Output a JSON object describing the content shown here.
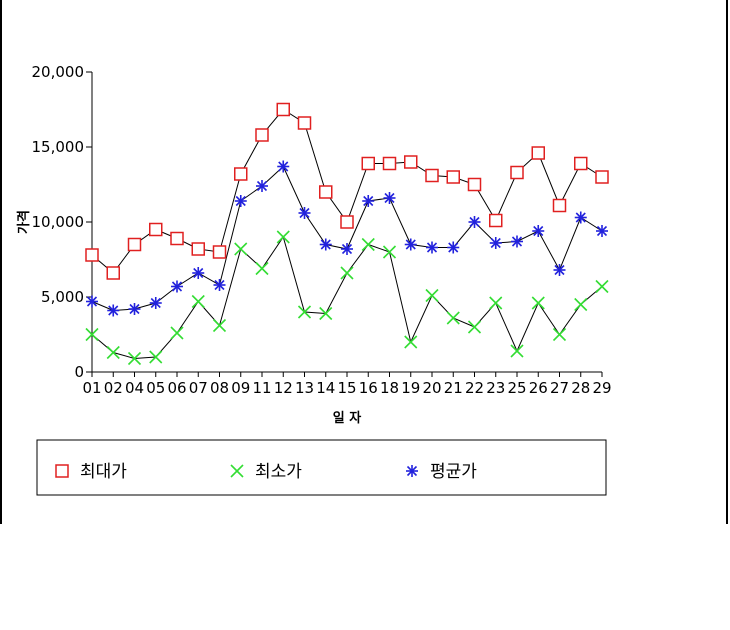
{
  "chart_data": {
    "type": "line",
    "xlabel": "일 자",
    "ylabel": "가격",
    "ylim": [
      0,
      20000
    ],
    "yticks": [
      0,
      5000,
      10000,
      15000,
      20000
    ],
    "ytick_labels": [
      "0",
      "5,000",
      "10,000",
      "15,000",
      "20,000"
    ],
    "grid": false,
    "legend_position": "bottom",
    "categories": [
      "01",
      "02",
      "04",
      "05",
      "06",
      "07",
      "08",
      "09",
      "11",
      "12",
      "13",
      "14",
      "15",
      "16",
      "18",
      "19",
      "20",
      "21",
      "22",
      "23",
      "25",
      "26",
      "27",
      "28",
      "29"
    ],
    "series": [
      {
        "name": "최대가",
        "marker": "square",
        "color": "#e02020",
        "values": [
          7800,
          6600,
          8500,
          9500,
          8900,
          8200,
          8000,
          13200,
          15800,
          17500,
          16600,
          12000,
          10000,
          13900,
          13900,
          14000,
          13100,
          13000,
          12500,
          10100,
          13300,
          14600,
          11100,
          13900,
          13000
        ]
      },
      {
        "name": "최소가",
        "marker": "x",
        "color": "#33dd33",
        "values": [
          2500,
          1300,
          900,
          1000,
          2600,
          4700,
          3100,
          8200,
          6900,
          9000,
          4000,
          3900,
          6600,
          8500,
          8000,
          2000,
          5100,
          3600,
          3000,
          4600,
          1400,
          4600,
          2500,
          4500,
          5700
        ]
      },
      {
        "name": "평균가",
        "marker": "asterisk",
        "color": "#2222dd",
        "values": [
          4700,
          4100,
          4200,
          4600,
          5700,
          6600,
          5800,
          11400,
          12400,
          13700,
          10600,
          8500,
          8200,
          11400,
          11600,
          8500,
          8300,
          8300,
          10000,
          8600,
          8700,
          9400,
          6800,
          10300,
          9400
        ]
      }
    ]
  }
}
